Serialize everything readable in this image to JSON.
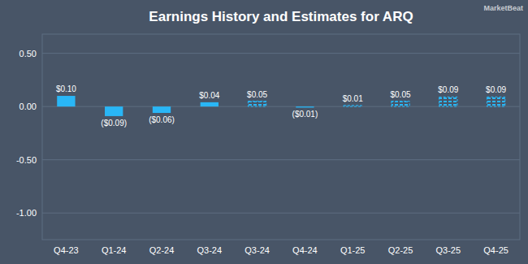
{
  "chart_data": {
    "type": "bar",
    "title": "Earnings History and Estimates for ARQ",
    "categories": [
      "Q4-23",
      "Q1-24",
      "Q2-24",
      "Q3-24",
      "Q3-24",
      "Q4-24",
      "Q1-25",
      "Q2-25",
      "Q3-25",
      "Q4-25"
    ],
    "series": [
      {
        "color": "#29b6f6",
        "line_style": "solid",
        "values": [
          0.1,
          -0.09,
          -0.06,
          0.04,
          null,
          -0.01,
          null,
          null,
          null,
          null
        ],
        "value_labels": [
          "$0.10",
          "($0.09)",
          "($0.06)",
          "$0.04",
          null,
          "($0.01)",
          null,
          null,
          null,
          null
        ]
      },
      {
        "color": "#29b6f6",
        "line_style": "dashed",
        "values": [
          null,
          null,
          null,
          null,
          0.05,
          null,
          0.01,
          0.05,
          0.09,
          0.09
        ],
        "value_labels": [
          null,
          null,
          null,
          null,
          "$0.05",
          null,
          "$0.01",
          "$0.05",
          "$0.09",
          "$0.09"
        ]
      }
    ],
    "data_labels": true,
    "ylim": [
      -1.25,
      0.68
    ],
    "yticks": [
      {
        "value": 0.5,
        "label": "0.50"
      },
      {
        "value": 0.0,
        "label": "0.00"
      },
      {
        "value": -0.5,
        "label": "-0.50"
      },
      {
        "value": -1.0,
        "label": "-1.00"
      }
    ],
    "grid": true,
    "annotations": [
      "MarketBeat"
    ]
  }
}
